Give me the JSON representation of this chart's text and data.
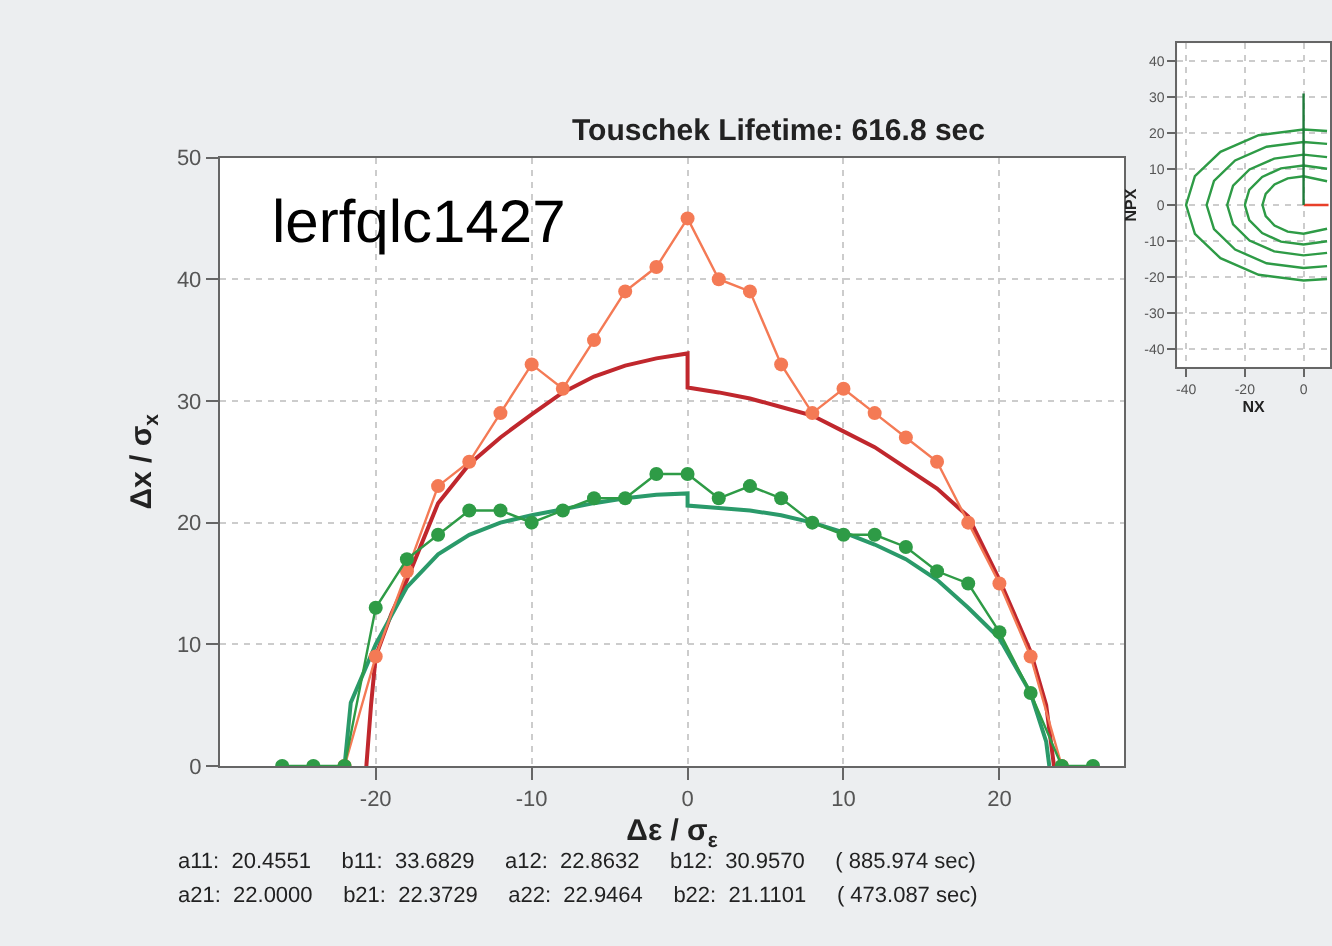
{
  "chart_data": [
    {
      "type": "line",
      "title": "Touschek Lifetime: 616.8 sec",
      "xlabel": "Δε / σ$_{ε}$",
      "ylabel": "Δx / σ$_{x}$",
      "xlim": [
        -30,
        28
      ],
      "ylim": [
        0,
        50
      ],
      "xticks": [
        -20,
        -10,
        0,
        10,
        20
      ],
      "yticks": [
        0,
        10,
        20,
        30,
        40,
        50
      ],
      "grid": true,
      "series": [
        {
          "color": "#c0272d",
          "marker": "none",
          "x": [
            -20.6,
            -20.3,
            -20,
            -19,
            -18,
            -16,
            -14,
            -12,
            -10,
            -8,
            -6,
            -4,
            -2,
            0,
            0,
            2,
            4,
            6,
            8,
            10,
            12,
            14,
            16,
            18,
            20,
            22,
            23,
            23.5
          ],
          "values": [
            0,
            5,
            9,
            12.5,
            15.3,
            21.6,
            24.8,
            27,
            28.9,
            30.7,
            32,
            32.9,
            33.5,
            33.9,
            31.1,
            30.7,
            30.2,
            29.5,
            28.8,
            27.5,
            26.2,
            24.5,
            22.8,
            20.5,
            15.3,
            9.4,
            5,
            0
          ]
        },
        {
          "color": "#2a9a6a",
          "marker": "none",
          "x": [
            -22,
            -21.6,
            -20,
            -18,
            -16,
            -14,
            -12,
            -10,
            -8,
            -6,
            -4,
            -2,
            0,
            0,
            2,
            4,
            6,
            8,
            10,
            12,
            14,
            16,
            18,
            20,
            22,
            23,
            23.2
          ],
          "values": [
            0,
            5.2,
            10,
            14.7,
            17.4,
            19,
            20,
            20.6,
            21.1,
            21.6,
            22,
            22.3,
            22.4,
            21.4,
            21.2,
            21,
            20.6,
            20,
            19.2,
            18.2,
            17,
            15.3,
            13,
            10.5,
            6,
            2,
            0
          ]
        },
        {
          "color": "#f47a55",
          "marker": "circle",
          "x": [
            -22,
            -20,
            -18,
            -16,
            -14,
            -12,
            -10,
            -8,
            -6,
            -4,
            -2,
            0,
            2,
            4,
            6,
            8,
            10,
            12,
            14,
            16,
            18,
            20,
            22,
            24
          ],
          "values": [
            0,
            9,
            16,
            23,
            25,
            29,
            33,
            31,
            35,
            39,
            41,
            45,
            40,
            39,
            33,
            29,
            31,
            29,
            27,
            25,
            20,
            15,
            9,
            0
          ]
        },
        {
          "color": "#2e9b46",
          "marker": "circle",
          "x": [
            -26,
            -24,
            -22,
            -20,
            -18,
            -16,
            -14,
            -12,
            -10,
            -8,
            -6,
            -4,
            -2,
            0,
            2,
            4,
            6,
            8,
            10,
            12,
            14,
            16,
            18,
            20,
            22,
            24,
            26
          ],
          "values": [
            0,
            0,
            0,
            13,
            17,
            19,
            21,
            21,
            20,
            21,
            22,
            22,
            24,
            24,
            22,
            23,
            22,
            20,
            19,
            19,
            18,
            16,
            15,
            11,
            6,
            0,
            0
          ]
        }
      ],
      "annotations": [
        "lerfqlc1427",
        "a11:  20.4551     b11:  33.6829     a12:  22.8632     b12:  30.9570     ( 885.974 sec)",
        "a21:  22.0000     b21:  22.3729     a22:  22.9464     b22:  21.1101     ( 473.087 sec)"
      ]
    },
    {
      "type": "line",
      "xlabel": "NX",
      "ylabel": "NPX",
      "xlim": [
        -43,
        9
      ],
      "ylim": [
        -45,
        45
      ],
      "xticks": [
        -40,
        -20,
        0
      ],
      "yticks": [
        -40,
        -30,
        -20,
        -10,
        0,
        10,
        20,
        30,
        40
      ],
      "grid": true,
      "series": [
        {
          "color": "#e8402a",
          "marker": "none",
          "x": [
            0,
            8.5
          ],
          "values": [
            0,
            0
          ]
        },
        {
          "type": "line",
          "color": "#2e9b46",
          "x": [
            8,
            0,
            -15.3,
            -28.3,
            -37,
            -40,
            -37,
            -28.3,
            -15.3,
            0,
            8
          ],
          "values": [
            20.6,
            21,
            19.4,
            14.8,
            8,
            0,
            -8,
            -14.8,
            -19.4,
            -21,
            -20.6
          ]
        },
        {
          "type": "line",
          "color": "#2e9b46",
          "x": [
            8,
            0,
            -12.6,
            -23.3,
            -30.5,
            -33,
            -30.5,
            -23.3,
            -12.6,
            0,
            8
          ],
          "values": [
            17,
            17.5,
            16.2,
            12.4,
            6.7,
            0,
            -6.7,
            -12.4,
            -16.2,
            -17.5,
            -17
          ]
        },
        {
          "type": "line",
          "color": "#2e9b46",
          "x": [
            8,
            0,
            -10,
            -18.4,
            -24,
            -26,
            -24,
            -18.4,
            -10,
            0,
            8
          ],
          "values": [
            13.3,
            14,
            12.9,
            9.9,
            5.4,
            0,
            -5.4,
            -9.9,
            -12.9,
            -14,
            -13.3
          ]
        },
        {
          "type": "line",
          "color": "#2e9b46",
          "x": [
            8,
            0,
            -7.7,
            -14.1,
            -18.5,
            -20,
            -18.5,
            -14.1,
            -7.7,
            0,
            8
          ],
          "values": [
            10.1,
            11,
            10.2,
            7.8,
            4.2,
            0,
            -4.2,
            -7.8,
            -10.2,
            -11,
            -10.1
          ]
        },
        {
          "type": "line",
          "color": "#2e9b46",
          "x": [
            8,
            0,
            -5.4,
            -9.9,
            -12.9,
            -14,
            -12.9,
            -9.9,
            -5.4,
            0,
            8
          ],
          "values": [
            6.6,
            8,
            7.4,
            5.7,
            3.1,
            0,
            -3.1,
            -5.7,
            -7.4,
            -8,
            -6.6
          ]
        },
        {
          "color": "#1f7a3a",
          "marker": "none",
          "x": [
            0,
            0
          ],
          "values": [
            0,
            31
          ]
        }
      ]
    }
  ]
}
